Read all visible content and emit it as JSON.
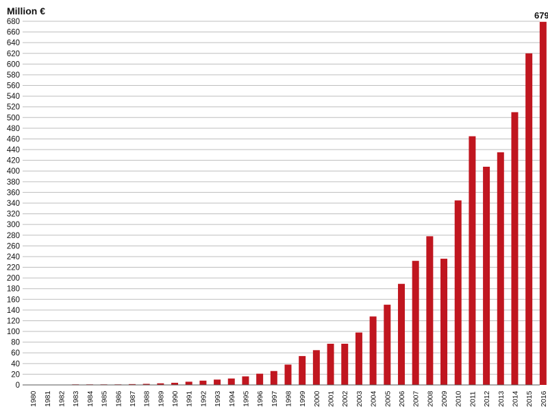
{
  "chart_data": {
    "type": "bar",
    "ylabel": "Million €",
    "xlabel": "",
    "ylim": [
      0,
      680
    ],
    "ytick_step": 20,
    "grid": true,
    "bar_color": "#c0161f",
    "categories": [
      "1980",
      "1981",
      "1982",
      "1983",
      "1984",
      "1985",
      "1986",
      "1987",
      "1988",
      "1989",
      "1990",
      "1991",
      "1992",
      "1993",
      "1994",
      "1995",
      "1996",
      "1997",
      "1998",
      "1999",
      "2000",
      "2001",
      "2002",
      "2003",
      "2004",
      "2005",
      "2006",
      "2007",
      "2008",
      "2009",
      "2010",
      "2011",
      "2012",
      "2013",
      "2014",
      "2015",
      "2016"
    ],
    "values": [
      0,
      0,
      0,
      0.3,
      0.5,
      0.8,
      1,
      1.5,
      2,
      3,
      4,
      6,
      8,
      10,
      12,
      16,
      21,
      26,
      38,
      54,
      65,
      77,
      77,
      98,
      128,
      150,
      189,
      232,
      278,
      236,
      345,
      465,
      408,
      435,
      510,
      620,
      679
    ],
    "data_labels": [
      {
        "index": 36,
        "text": "679"
      }
    ]
  }
}
